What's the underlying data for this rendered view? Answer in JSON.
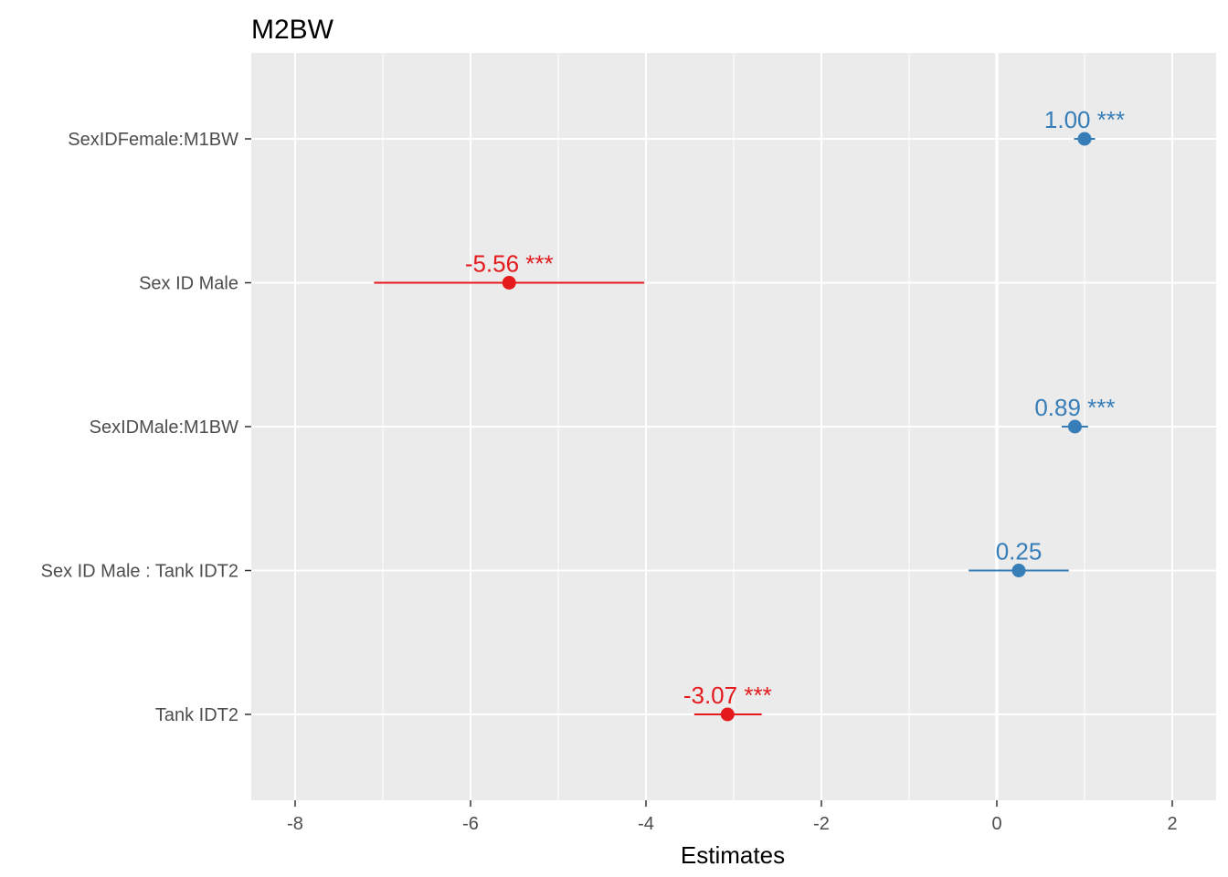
{
  "chart_data": {
    "type": "scatter",
    "title": "M2BW",
    "xlabel": "Estimates",
    "ylabel": "",
    "xlim": [
      -8.5,
      2.5
    ],
    "x_ticks": [
      -8,
      -6,
      -4,
      -2,
      0,
      2
    ],
    "x_tick_labels": [
      "-8",
      "-6",
      "-4",
      "-2",
      "0",
      "2"
    ],
    "grid": true,
    "zero_line": 0,
    "colors": {
      "positive": "#377eb8",
      "negative": "#e41a1c",
      "panel": "#ebebeb",
      "grid": "#ffffff"
    },
    "terms": [
      {
        "label": "SexIDFemale:M1BW",
        "estimate": 1.0,
        "ci_low": 0.88,
        "ci_high": 1.12,
        "value_label": "1.00 ***",
        "sign": "positive"
      },
      {
        "label": "Sex ID Male",
        "estimate": -5.56,
        "ci_low": -7.1,
        "ci_high": -4.02,
        "value_label": "-5.56 ***",
        "sign": "negative"
      },
      {
        "label": "SexIDMale:M1BW",
        "estimate": 0.89,
        "ci_low": 0.74,
        "ci_high": 1.04,
        "value_label": "0.89 ***",
        "sign": "positive"
      },
      {
        "label": "Sex ID Male : Tank IDT2",
        "estimate": 0.25,
        "ci_low": -0.32,
        "ci_high": 0.82,
        "value_label": "0.25",
        "sign": "positive"
      },
      {
        "label": "Tank IDT2",
        "estimate": -3.07,
        "ci_low": -3.45,
        "ci_high": -2.68,
        "value_label": "-3.07 ***",
        "sign": "negative"
      }
    ]
  }
}
